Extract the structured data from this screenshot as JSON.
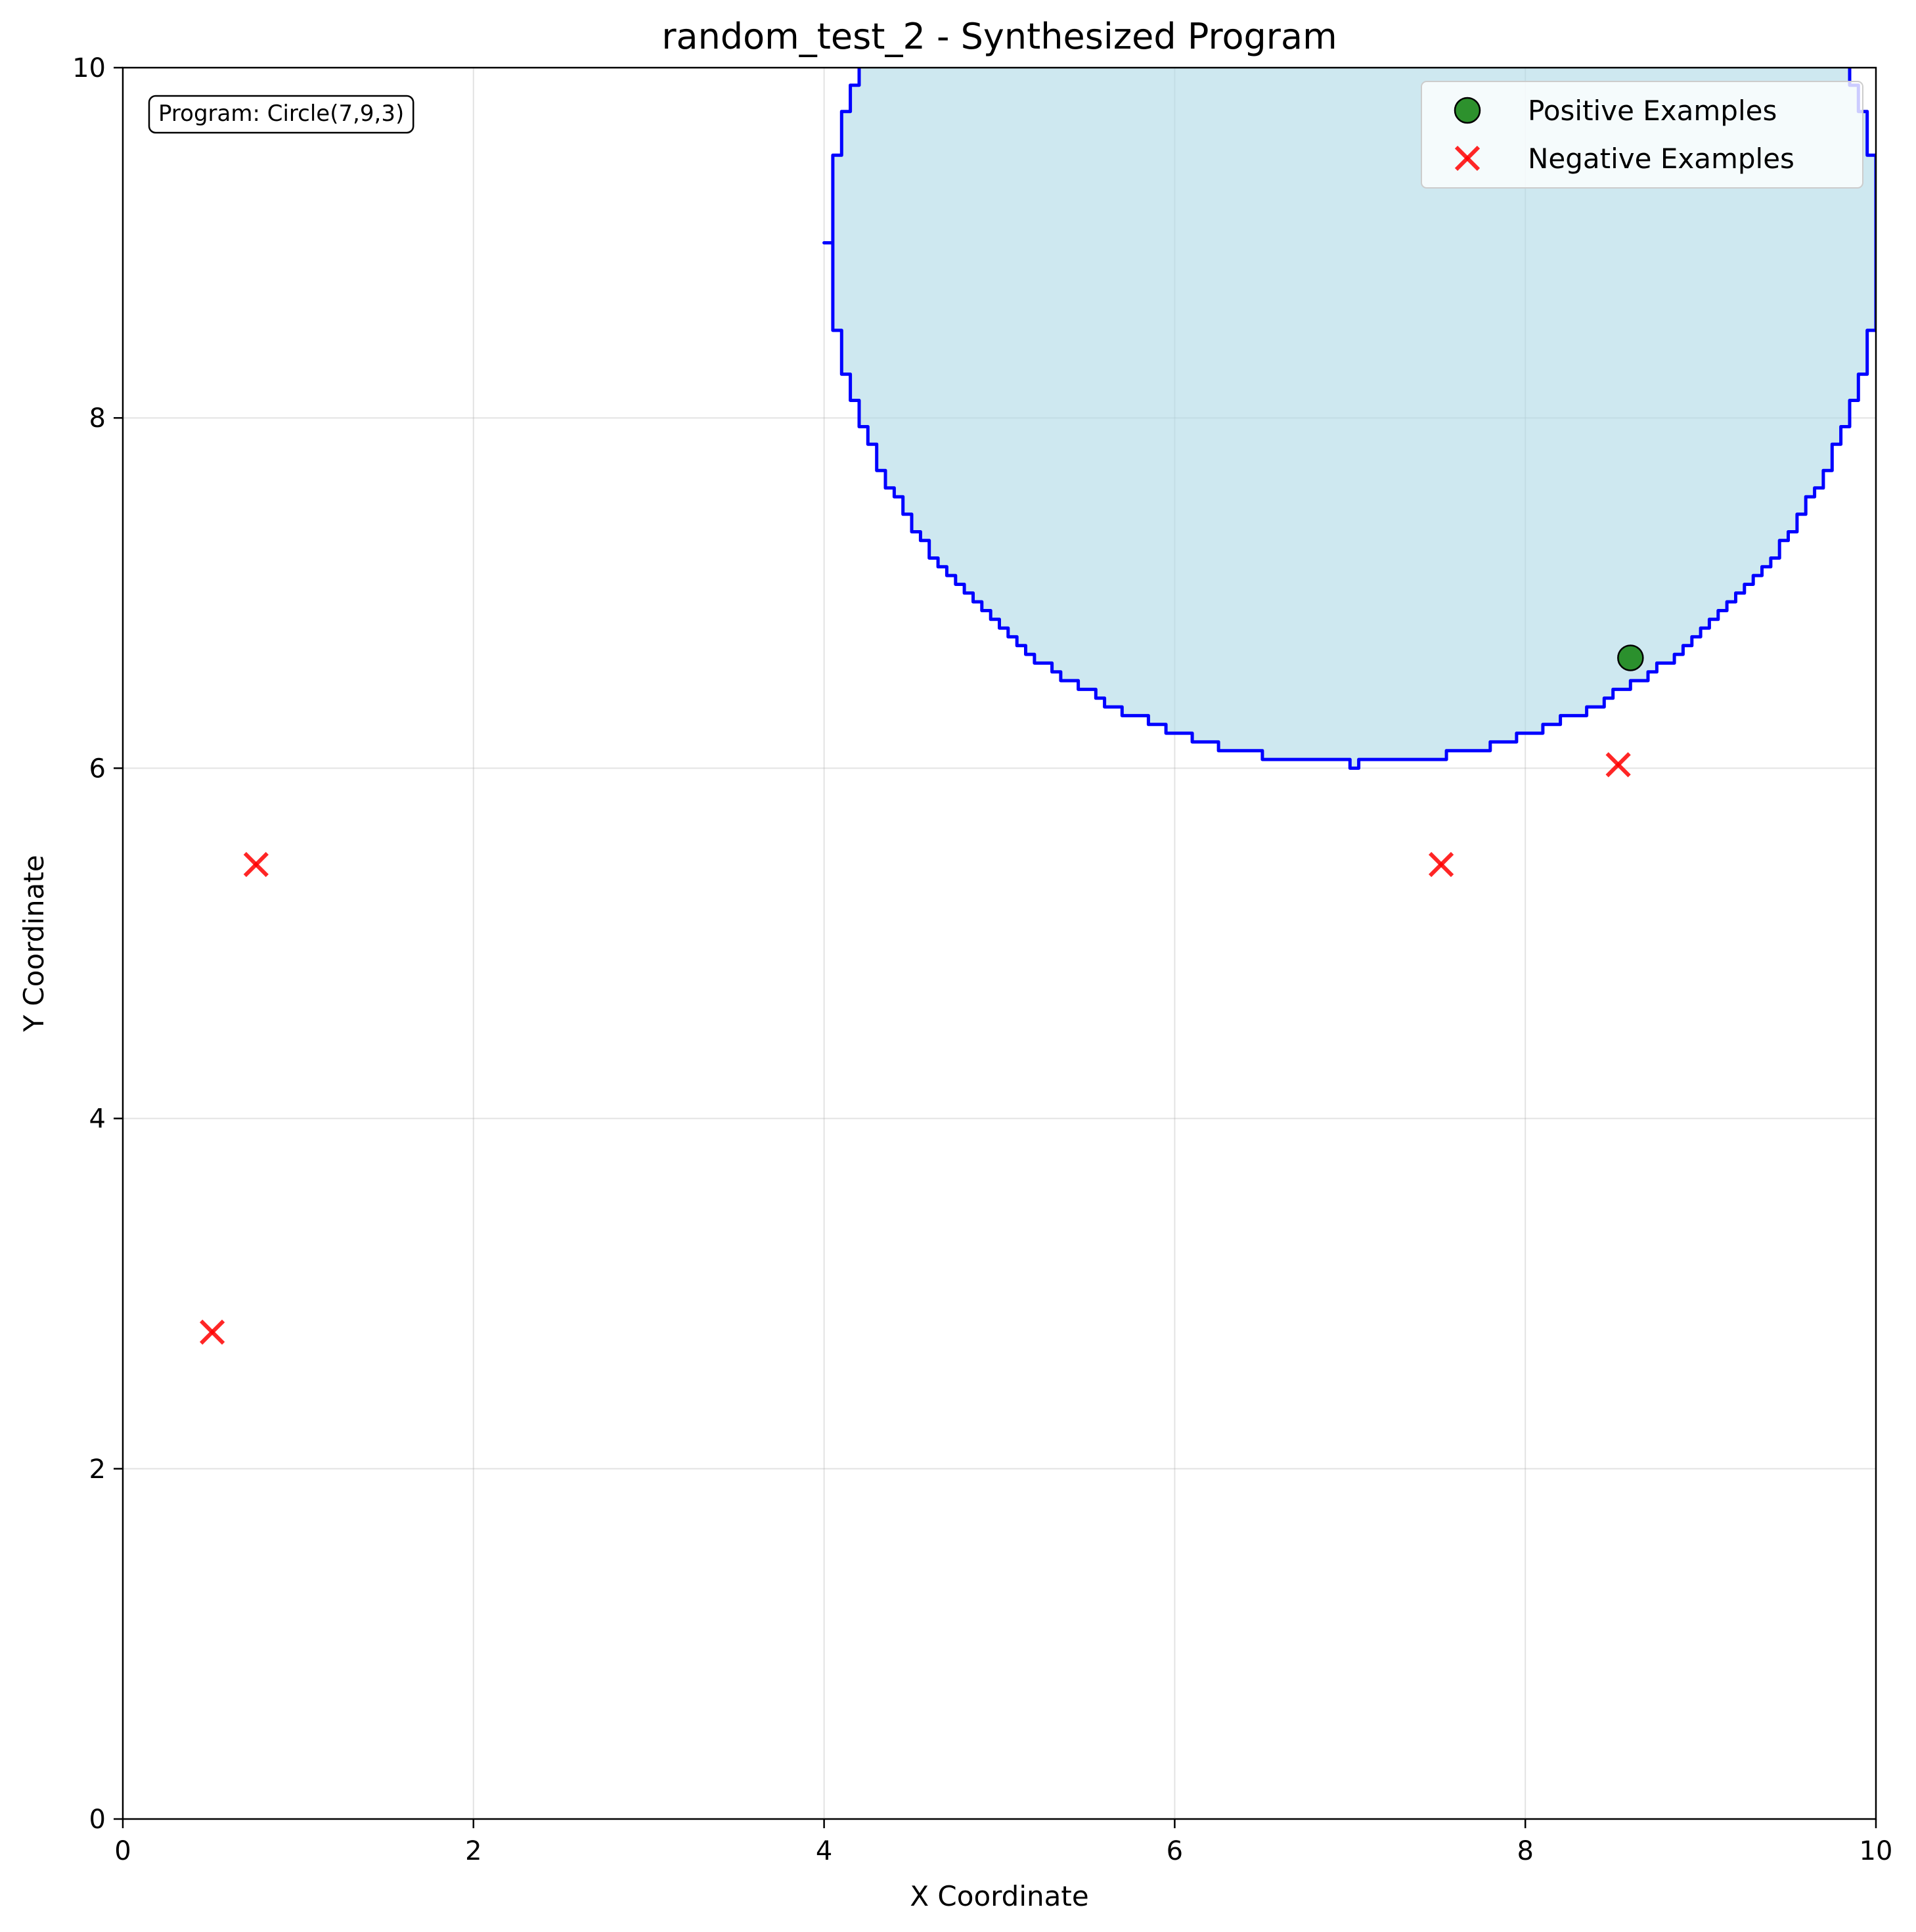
{
  "chart_data": {
    "type": "scatter",
    "title": "random_test_2 - Synthesized Program",
    "xlabel": "X Coordinate",
    "ylabel": "Y Coordinate",
    "xlim": [
      0,
      10
    ],
    "ylim": [
      0,
      10
    ],
    "xticks": [
      "0",
      "2",
      "4",
      "6",
      "8",
      "10"
    ],
    "yticks": [
      "0",
      "2",
      "4",
      "6",
      "8",
      "10"
    ],
    "grid": true,
    "legend_position": "top-right",
    "annotation": "Program: Circle(7,9,3)",
    "region": {
      "shape": "circle",
      "cx": 7,
      "cy": 9,
      "r": 3,
      "fill": "#add8e6",
      "edge": "#0000ff"
    },
    "series": [
      {
        "name": "Positive Examples",
        "marker": "circle",
        "color": "#228b22",
        "points": [
          {
            "x": 8.6,
            "y": 6.63
          }
        ]
      },
      {
        "name": "Negative Examples",
        "marker": "x",
        "color": "#ff0000",
        "points": [
          {
            "x": 0.76,
            "y": 5.45
          },
          {
            "x": 0.51,
            "y": 2.78
          },
          {
            "x": 7.52,
            "y": 5.45
          },
          {
            "x": 8.53,
            "y": 6.02
          }
        ]
      }
    ]
  }
}
